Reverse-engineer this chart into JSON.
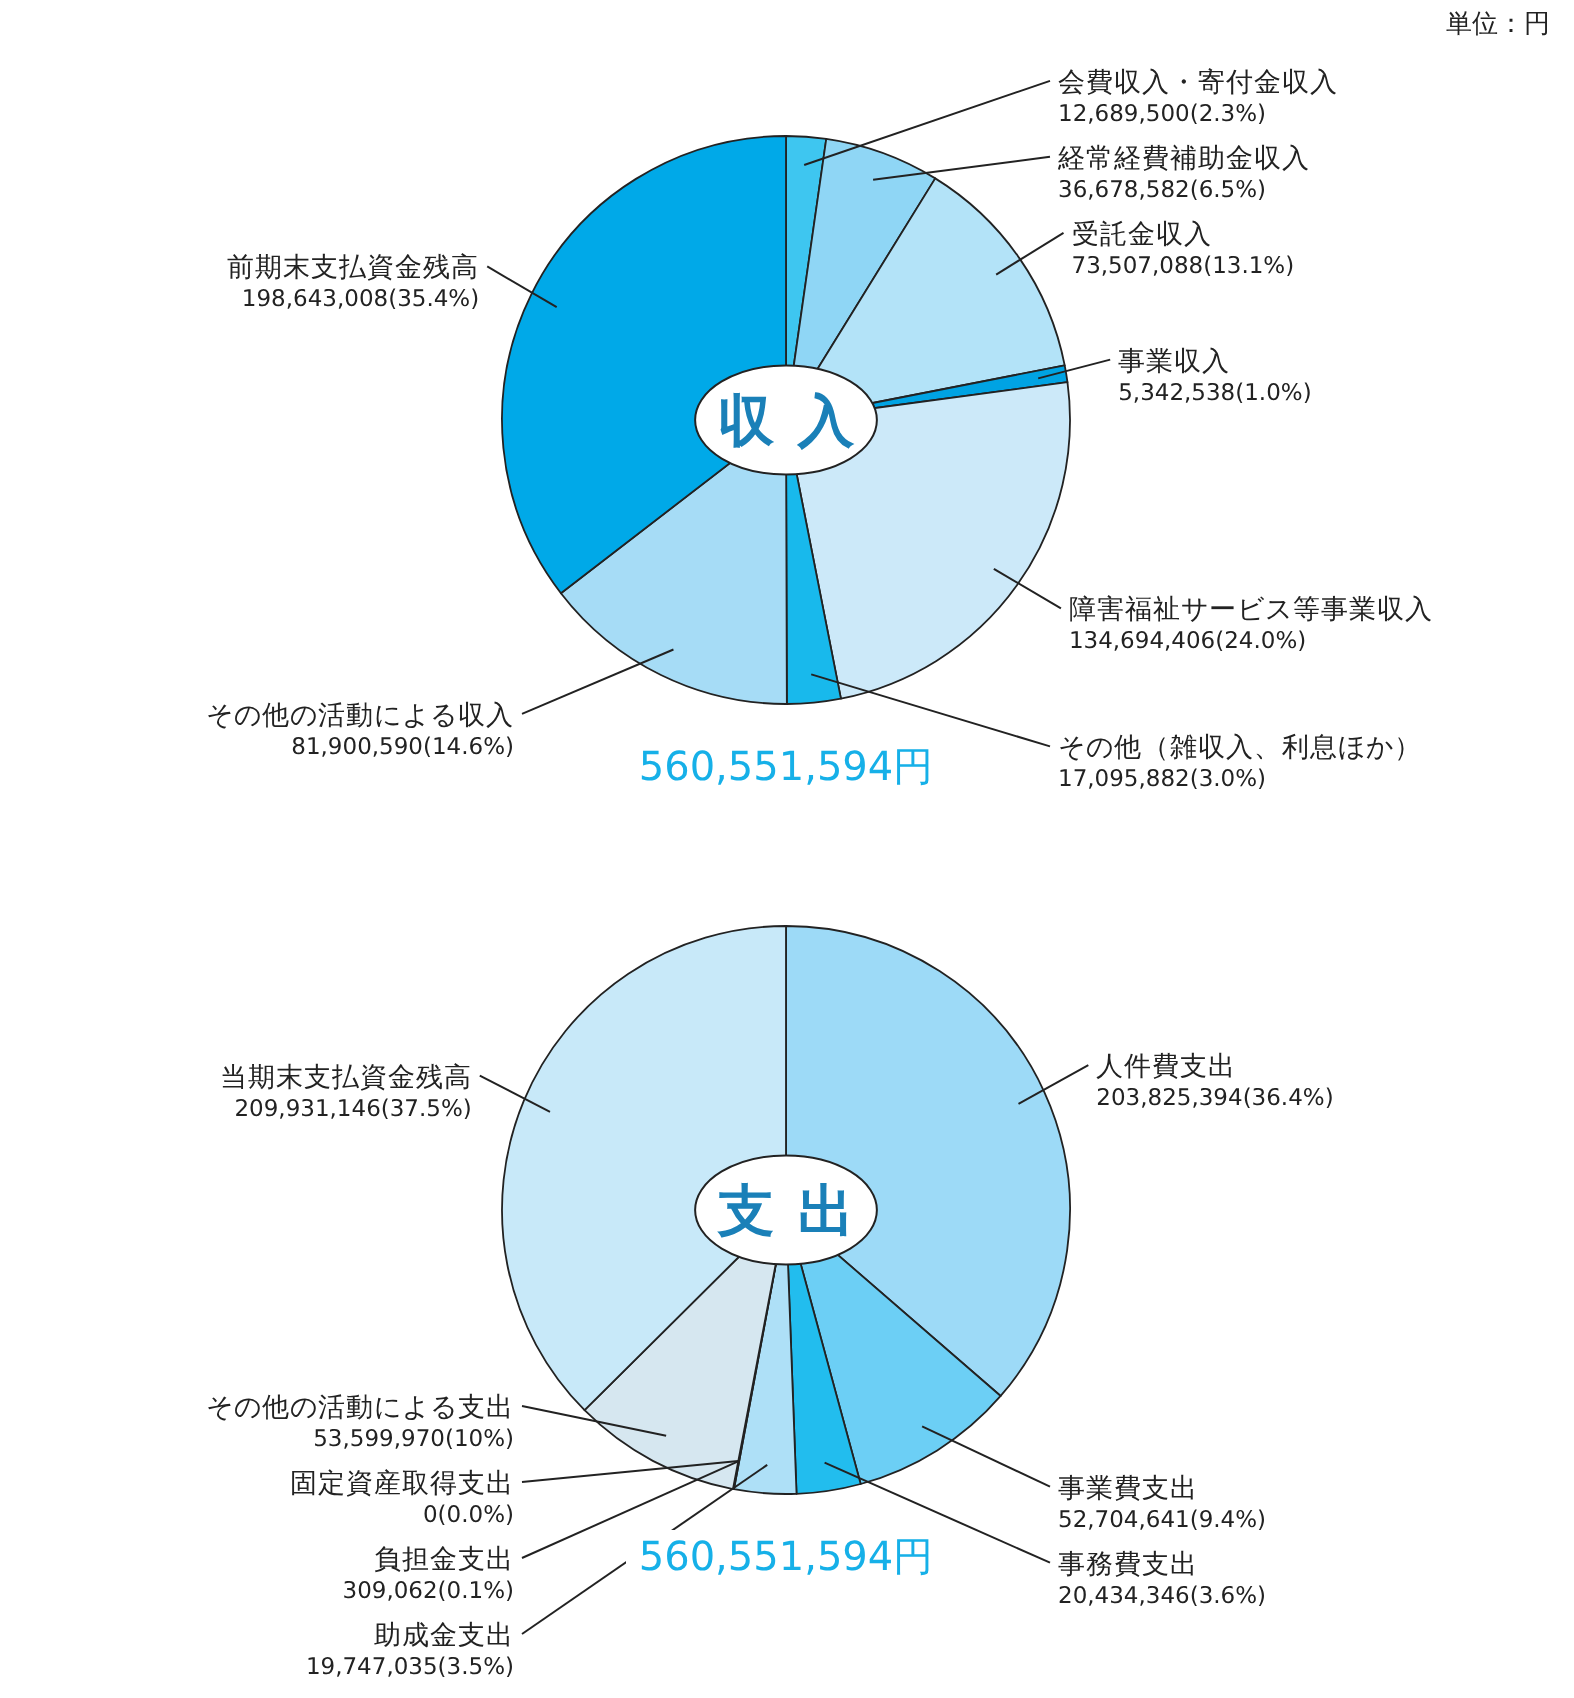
{
  "chart_data": [
    {
      "type": "pie",
      "title": "収入",
      "categories": [
        "会費収入・寄付金収入",
        "経常経費補助金収入",
        "受託金収入",
        "事業収入",
        "障害福祉サービス等事業収入",
        "その他（雑収入、利息ほか）",
        "その他の活動による収入",
        "前期末支払資金残高"
      ],
      "values": [
        12689500,
        36678582,
        73507088,
        5342538,
        134694406,
        17095882,
        81900590,
        198643008
      ],
      "value_labels": [
        "12,689,500(2.3%)",
        "36,678,582(6.5%)",
        "73,507,088(13.1%)",
        "5,342,538(1.0%)",
        "134,694,406(24.0%)",
        "17,095,882(3.0%)",
        "81,900,590(14.6%)",
        "198,643,008(35.4%)"
      ],
      "colors": [
        "#3ec6f0",
        "#8fd6f5",
        "#b3e3f8",
        "#00a3e3",
        "#cce9f9",
        "#18b9ec",
        "#a6dcf6",
        "#00a9e8"
      ],
      "annotations": [
        "単位：円",
        "560,551,594円"
      ]
    },
    {
      "type": "pie",
      "title": "支出",
      "categories": [
        "人件費支出",
        "事業費支出",
        "事務費支出",
        "助成金支出",
        "負担金支出",
        "固定資産取得支出",
        "その他の活動による支出",
        "当期末支払資金残高"
      ],
      "values": [
        203825394,
        52704641,
        20434346,
        19747035,
        309062,
        0,
        53599970,
        209931146
      ],
      "value_labels": [
        "203,825,394(36.4%)",
        "52,704,641(9.4%)",
        "20,434,346(3.6%)",
        "19,747,035(3.5%)",
        "309,062(0.1%)",
        "0(0.0%)",
        "53,599,970(10%)",
        "209,931,146(37.5%)"
      ],
      "colors": [
        "#9ddaf7",
        "#6ccff5",
        "#22bdee",
        "#aee0f7",
        "#cde9f6",
        "#d2e6f0",
        "#d6e7f0",
        "#c8e9f9"
      ],
      "annotations": [
        "560,551,594円"
      ]
    }
  ]
}
